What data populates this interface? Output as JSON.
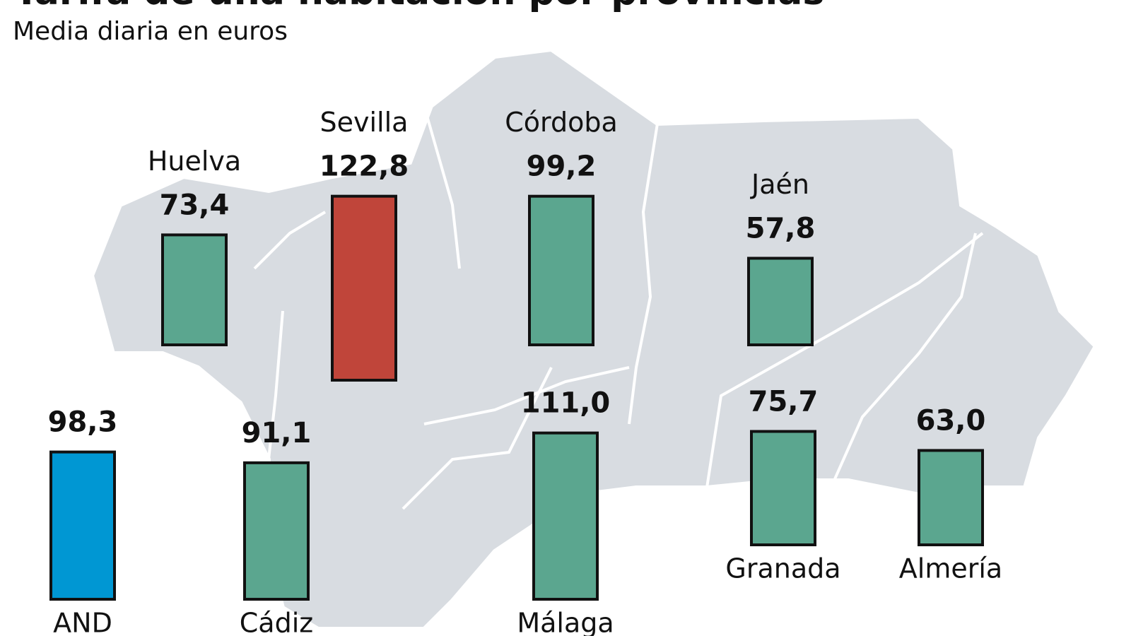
{
  "chart_data": {
    "type": "bar",
    "title": "Tarifa de una habitación por provincias",
    "subtitle": "Media diaria en euros",
    "categories": [
      "Huelva",
      "Sevilla",
      "Córdoba",
      "Jaén",
      "AND",
      "Cádiz",
      "Málaga",
      "Granada",
      "Almería"
    ],
    "values": [
      73.4,
      122.8,
      99.2,
      57.8,
      98.3,
      91.1,
      111.0,
      75.7,
      63.0
    ],
    "value_labels": [
      "73,4",
      "122,8",
      "99,2",
      "57,8",
      "98,3",
      "91,1",
      "111,0",
      "75,7",
      "63,0"
    ],
    "colors": [
      "#5ba68f",
      "#c0453a",
      "#5ba68f",
      "#5ba68f",
      "#0097d3",
      "#5ba68f",
      "#5ba68f",
      "#5ba68f",
      "#5ba68f"
    ]
  }
}
